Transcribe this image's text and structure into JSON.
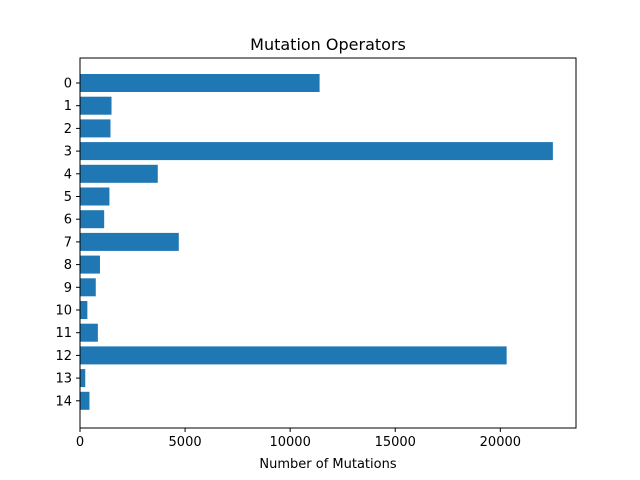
{
  "chart_data": {
    "type": "bar",
    "orientation": "horizontal",
    "title": "Mutation Operators",
    "xlabel": "Number of Mutations",
    "ylabel": "",
    "categories": [
      "0",
      "1",
      "2",
      "3",
      "4",
      "5",
      "6",
      "7",
      "8",
      "9",
      "10",
      "11",
      "12",
      "13",
      "14"
    ],
    "values": [
      11400,
      1500,
      1450,
      22500,
      3700,
      1400,
      1150,
      4700,
      950,
      750,
      350,
      850,
      20300,
      250,
      450
    ],
    "xlim": [
      0,
      23600
    ],
    "xticks": [
      0,
      5000,
      10000,
      15000,
      20000
    ],
    "bar_color": "#1f77b4",
    "grid": false,
    "legend": "none"
  }
}
